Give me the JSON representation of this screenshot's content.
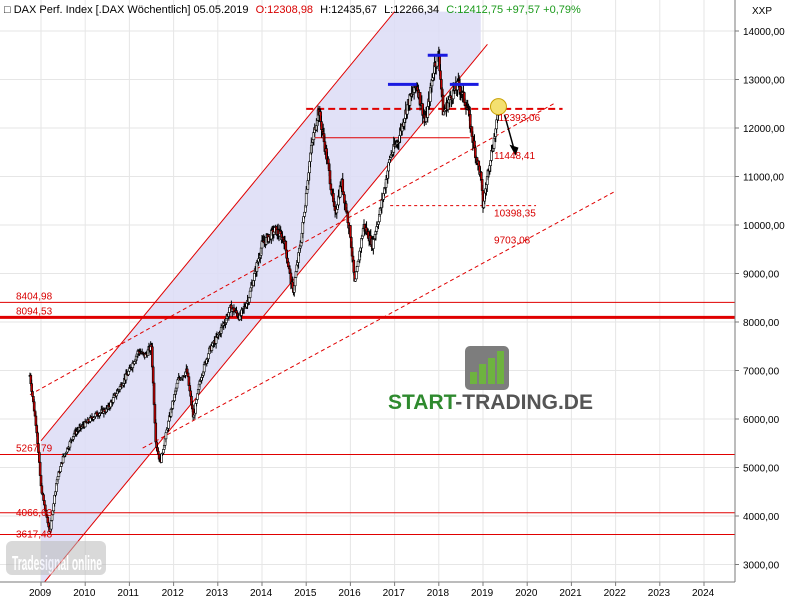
{
  "header": {
    "title": "DAX Perf. Index [.DAX  Wöchentlich] 05.05.2019",
    "open": "O:12308,98",
    "high": "H:12435,67",
    "low": "L:12266,34",
    "close": "C:12412,75 +97,57 +0,79%"
  },
  "y_unit": "XXP",
  "logo": {
    "text_start": "START",
    "text_dash": "-",
    "text_end": "TRADING.DE",
    "watermark": "Tradesignal online"
  },
  "colors": {
    "price": "#000000",
    "down_candle": "#c00000",
    "level": "#e00000",
    "channel_fill": "#dcdcf6",
    "highlight": "#1a1ae0",
    "target": "#f4e070"
  },
  "chart_data": {
    "type": "candlestick",
    "title": "DAX Perf. Index [.DAX  Wöchentlich] 05.05.2019",
    "ylabel": "XXP",
    "ylim": [
      2500,
      14400
    ],
    "x_ticks": [
      "2009",
      "2010",
      "2011",
      "2012",
      "2013",
      "2014",
      "2015",
      "2016",
      "2017",
      "2018",
      "2019",
      "2020",
      "2021",
      "2022",
      "2023",
      "2024"
    ],
    "y_ticks": [
      "3000,00",
      "4000,00",
      "5000,00",
      "6000,00",
      "7000,00",
      "8000,00",
      "9000,00",
      "10000,00",
      "11000,00",
      "12000,00",
      "13000,00",
      "14000,00"
    ],
    "price_path": [
      [
        2008.75,
        6900
      ],
      [
        2008.9,
        5800
      ],
      [
        2009.0,
        4600
      ],
      [
        2009.12,
        4000
      ],
      [
        2009.2,
        3666
      ],
      [
        2009.35,
        4700
      ],
      [
        2009.5,
        5200
      ],
      [
        2009.75,
        5700
      ],
      [
        2010.0,
        5900
      ],
      [
        2010.25,
        6100
      ],
      [
        2010.5,
        6200
      ],
      [
        2010.75,
        6600
      ],
      [
        2011.0,
        7000
      ],
      [
        2011.2,
        7400
      ],
      [
        2011.35,
        7300
      ],
      [
        2011.5,
        7500
      ],
      [
        2011.6,
        5500
      ],
      [
        2011.7,
        5100
      ],
      [
        2011.9,
        6000
      ],
      [
        2012.1,
        6800
      ],
      [
        2012.3,
        7000
      ],
      [
        2012.45,
        6000
      ],
      [
        2012.6,
        6800
      ],
      [
        2012.8,
        7400
      ],
      [
        2013.0,
        7700
      ],
      [
        2013.3,
        8300
      ],
      [
        2013.5,
        8100
      ],
      [
        2013.7,
        8500
      ],
      [
        2014.0,
        9600
      ],
      [
        2014.3,
        9900
      ],
      [
        2014.5,
        9700
      ],
      [
        2014.7,
        8600
      ],
      [
        2014.9,
        9800
      ],
      [
        2015.1,
        11500
      ],
      [
        2015.28,
        12390
      ],
      [
        2015.5,
        11200
      ],
      [
        2015.65,
        10200
      ],
      [
        2015.8,
        10900
      ],
      [
        2016.0,
        9800
      ],
      [
        2016.1,
        8750
      ],
      [
        2016.3,
        10000
      ],
      [
        2016.5,
        9600
      ],
      [
        2016.7,
        10400
      ],
      [
        2016.9,
        11400
      ],
      [
        2017.1,
        11800
      ],
      [
        2017.3,
        12500
      ],
      [
        2017.5,
        12900
      ],
      [
        2017.7,
        12100
      ],
      [
        2017.9,
        13300
      ],
      [
        2018.0,
        13500
      ],
      [
        2018.1,
        12300
      ],
      [
        2018.3,
        12700
      ],
      [
        2018.45,
        12900
      ],
      [
        2018.65,
        12400
      ],
      [
        2018.8,
        11600
      ],
      [
        2018.95,
        11000
      ],
      [
        2019.0,
        10400
      ],
      [
        2019.15,
        11300
      ],
      [
        2019.3,
        12000
      ],
      [
        2019.35,
        12410
      ]
    ],
    "levels": [
      {
        "label": "12393,06",
        "value": 12393.06,
        "style": "dashed"
      },
      {
        "label": "11448,41",
        "value": 11448.41,
        "style": "solid"
      },
      {
        "label": "10398,35",
        "value": 10398.35,
        "style": "dashed"
      },
      {
        "label": "9703,08",
        "value": 9703.08,
        "style": "trend"
      },
      {
        "label": "8404,98",
        "value": 8404.98,
        "style": "solid"
      },
      {
        "label": "8094,53",
        "value": 8094.53,
        "style": "bold"
      },
      {
        "label": "5267,79",
        "value": 5267.79,
        "style": "solid"
      },
      {
        "label": "4066,63",
        "value": 4066.63,
        "style": "solid"
      },
      {
        "label": "3617,48",
        "value": 3617.48,
        "style": "solid"
      }
    ],
    "channel": {
      "lower": [
        [
          2009.0,
          2550
        ],
        [
          2015.1,
          9300
        ]
      ],
      "upper": [
        [
          2009.0,
          5550
        ],
        [
          2017.0,
          14400
        ]
      ],
      "shade_end_year": 2018.95
    },
    "trend_lines": [
      {
        "from": [
          2008.75,
          6500
        ],
        "to": [
          2020.6,
          12500
        ],
        "style": "dashed"
      },
      {
        "from": [
          2011.3,
          5400
        ],
        "to": [
          2022.0,
          10700
        ],
        "style": "dashed"
      }
    ],
    "highlights": [
      {
        "x0": 2016.85,
        "x1": 2017.5,
        "value": 12900
      },
      {
        "x0": 2017.75,
        "x1": 2018.2,
        "value": 13500
      },
      {
        "x0": 2018.25,
        "x1": 2018.9,
        "value": 12900
      }
    ],
    "target": {
      "x": 2019.35,
      "value": 12440
    }
  }
}
